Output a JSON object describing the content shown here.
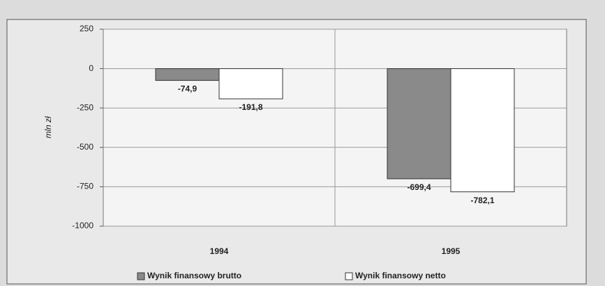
{
  "chart_data": {
    "type": "bar",
    "y_label": "mln zł",
    "categories": [
      "1994",
      "1995"
    ],
    "series": [
      {
        "name": "Wynik finansowy brutto",
        "color": "#8a8a8a",
        "values": [
          -74.9,
          -699.4
        ],
        "value_labels": [
          "-74,9",
          "-699,4"
        ]
      },
      {
        "name": "Wynik finansowy netto",
        "color": "#ffffff",
        "values": [
          -191.8,
          -782.1
        ],
        "value_labels": [
          "-191,8",
          "-782,1"
        ]
      }
    ],
    "ylim": [
      -1000,
      250
    ],
    "yticks": [
      -1000,
      -750,
      -500,
      -250,
      0,
      250
    ],
    "grid": true,
    "legend": "bottom"
  }
}
